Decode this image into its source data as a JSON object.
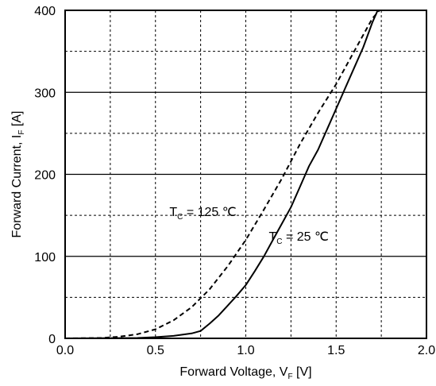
{
  "chart_data": {
    "type": "line",
    "xlabel": {
      "text": "Forward Voltage, V",
      "subscript": "F",
      "unit": " [V]"
    },
    "ylabel": {
      "text": "Forward Current, I",
      "subscript": "F",
      "unit": " [A]"
    },
    "xlim": [
      0.0,
      2.0
    ],
    "ylim": [
      0,
      400
    ],
    "x_ticks": [
      "0.0",
      "0.5",
      "1.0",
      "1.5",
      "2.0"
    ],
    "y_ticks": [
      "0",
      "100",
      "200",
      "300",
      "400"
    ],
    "x_tick_values": [
      0.0,
      0.5,
      1.0,
      1.5,
      2.0
    ],
    "y_tick_values": [
      0,
      100,
      200,
      300,
      400
    ],
    "grid": true,
    "major_grid_solid": true,
    "minor_grid_dashed": true,
    "series": [
      {
        "label": {
          "prefix": "T",
          "subscript": "C",
          "suffix": " = 125 ℃"
        },
        "style": "dashed",
        "color": "#000000",
        "x": [
          0.0,
          0.2,
          0.3,
          0.4,
          0.5,
          0.6,
          0.7,
          0.8,
          0.9,
          1.0,
          1.1,
          1.2,
          1.3,
          1.4,
          1.5,
          1.6,
          1.7,
          1.74
        ],
        "y": [
          0,
          0.5,
          2,
          5,
          11,
          22,
          38,
          60,
          88,
          120,
          157,
          195,
          237,
          275,
          310,
          350,
          390,
          400
        ]
      },
      {
        "label": {
          "prefix": "T",
          "subscript": "C",
          "suffix": " = 25 ℃"
        },
        "style": "solid",
        "color": "#000000",
        "x": [
          0.0,
          0.4,
          0.5,
          0.6,
          0.7,
          0.75,
          0.8,
          0.85,
          0.9,
          0.95,
          1.0,
          1.05,
          1.1,
          1.15,
          1.2,
          1.25,
          1.3,
          1.35,
          1.4,
          1.45,
          1.5,
          1.55,
          1.6,
          1.65,
          1.7,
          1.73
        ],
        "y": [
          0,
          0.5,
          1.5,
          3,
          6,
          9,
          18,
          28,
          40,
          52,
          65,
          82,
          100,
          120,
          140,
          160,
          185,
          210,
          230,
          255,
          280,
          305,
          330,
          355,
          385,
          400
        ]
      }
    ],
    "annotations": [
      {
        "series": 0,
        "at": [
          0.85,
          155
        ]
      },
      {
        "series": 1,
        "at": [
          1.4,
          125
        ]
      }
    ]
  }
}
